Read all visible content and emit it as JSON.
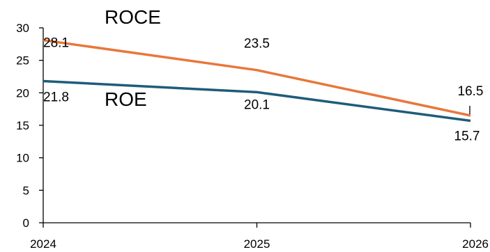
{
  "chart_data": {
    "type": "line",
    "x": [
      "2024",
      "2025",
      "2026"
    ],
    "ylim": [
      0,
      30
    ],
    "yticks": [
      0,
      5,
      10,
      15,
      20,
      25,
      30
    ],
    "grid": false,
    "series": [
      {
        "name": "ROCE",
        "values": [
          28.1,
          23.5,
          16.5
        ],
        "color": "#E8773A"
      },
      {
        "name": "ROE",
        "values": [
          21.8,
          20.1,
          15.7
        ],
        "color": "#1F5C7A"
      }
    ],
    "data_labels": [
      [
        "28.1",
        "23.5",
        "16.5"
      ],
      [
        "21.8",
        "20.1",
        "15.7"
      ]
    ]
  }
}
